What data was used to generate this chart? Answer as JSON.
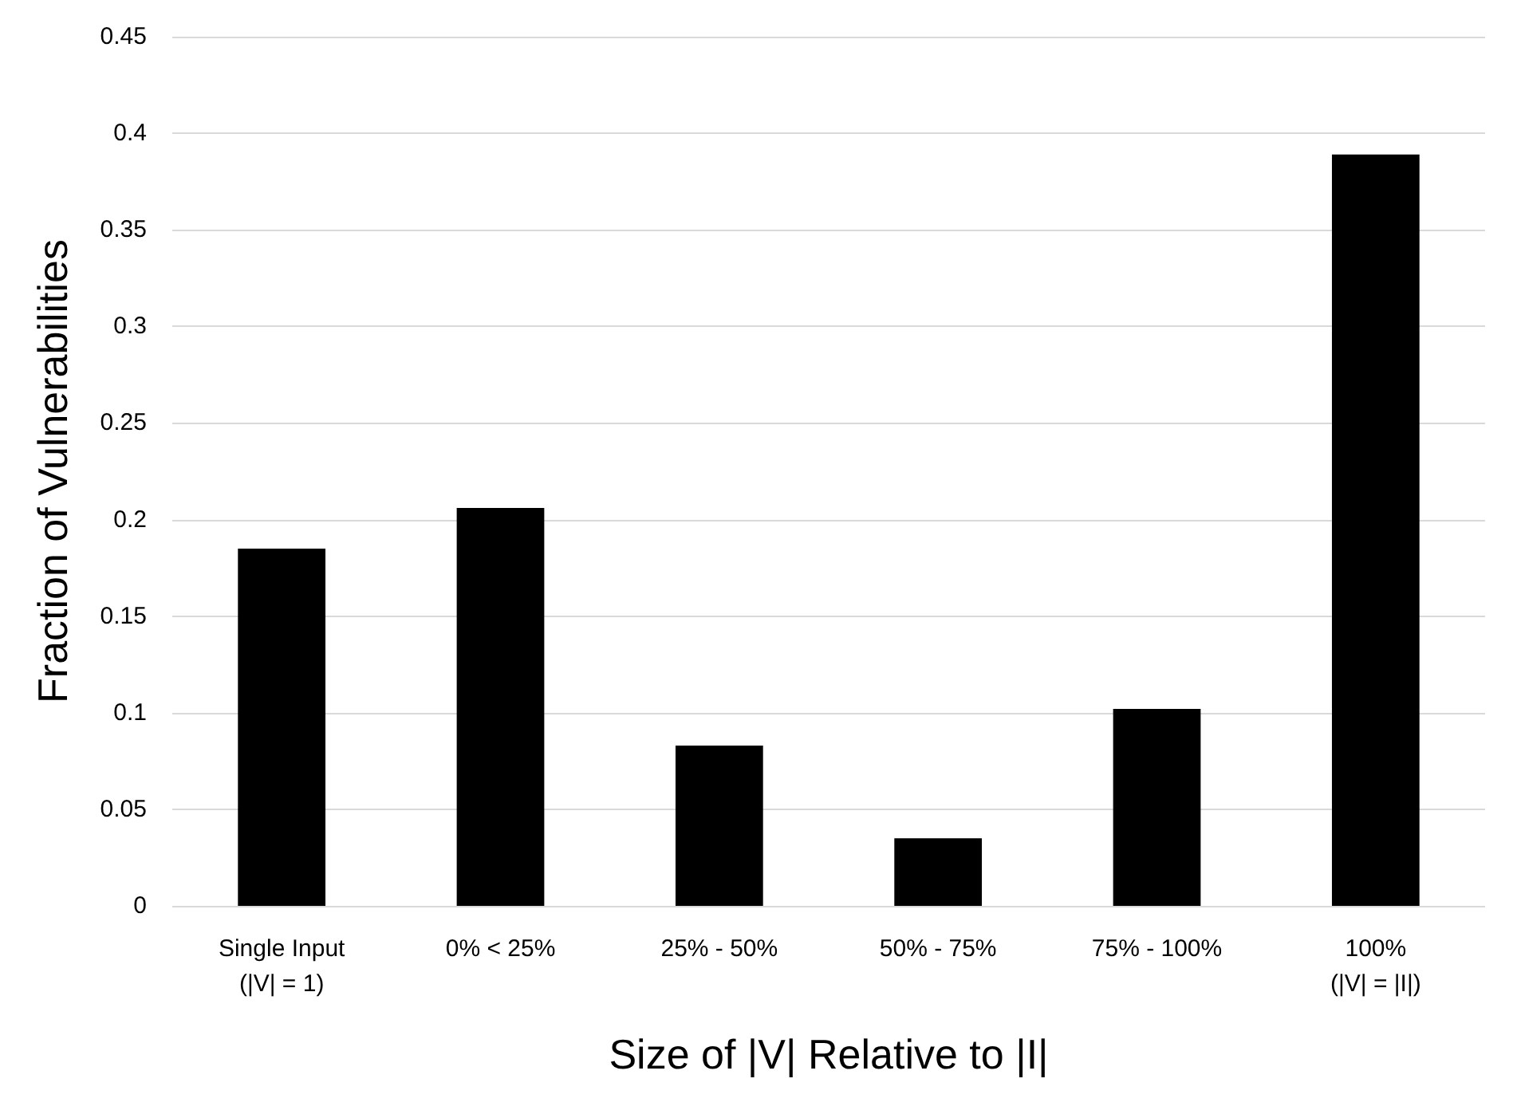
{
  "chart_data": {
    "type": "bar",
    "categories": [
      "Single Input\n(|V| = 1)",
      "0% < 25%",
      "25% - 50%",
      "50% - 75%",
      "75% - 100%",
      "100%\n(|V| = |I|)"
    ],
    "values": [
      0.185,
      0.206,
      0.083,
      0.035,
      0.102,
      0.389
    ],
    "color": "#000000",
    "xlabel": "Size of |V| Relative to |I|",
    "ylabel": "Fraction of Vulnerabilities",
    "ylim": [
      0,
      0.45
    ],
    "yticks": [
      0,
      0.05,
      0.1,
      0.15,
      0.2,
      0.25,
      0.3,
      0.35,
      0.4,
      0.45
    ],
    "grid": "y"
  }
}
